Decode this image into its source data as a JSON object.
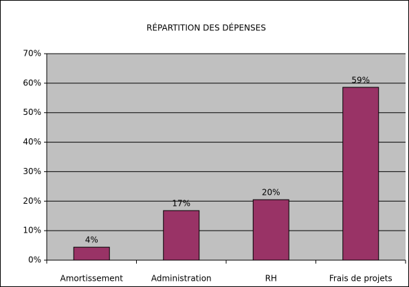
{
  "chart_data": {
    "type": "bar",
    "title": "RÉPARTITION DES DÉPENSES",
    "categories": [
      "Amortissement",
      "Administration",
      "RH",
      "Frais de projets"
    ],
    "values": [
      4.4,
      16.8,
      20.5,
      58.6
    ],
    "value_labels": [
      "4%",
      "17%",
      "20%",
      "59%"
    ],
    "color": "#993366",
    "ylim": [
      0,
      70
    ],
    "yticks": [
      {
        "value": 0,
        "label": "0%"
      },
      {
        "value": 10,
        "label": "10%"
      },
      {
        "value": 20,
        "label": "20%"
      },
      {
        "value": 30,
        "label": "30%"
      },
      {
        "value": 40,
        "label": "40%"
      },
      {
        "value": 50,
        "label": "50%"
      },
      {
        "value": 60,
        "label": "60%"
      },
      {
        "value": 70,
        "label": "70%"
      }
    ],
    "grid": true
  }
}
